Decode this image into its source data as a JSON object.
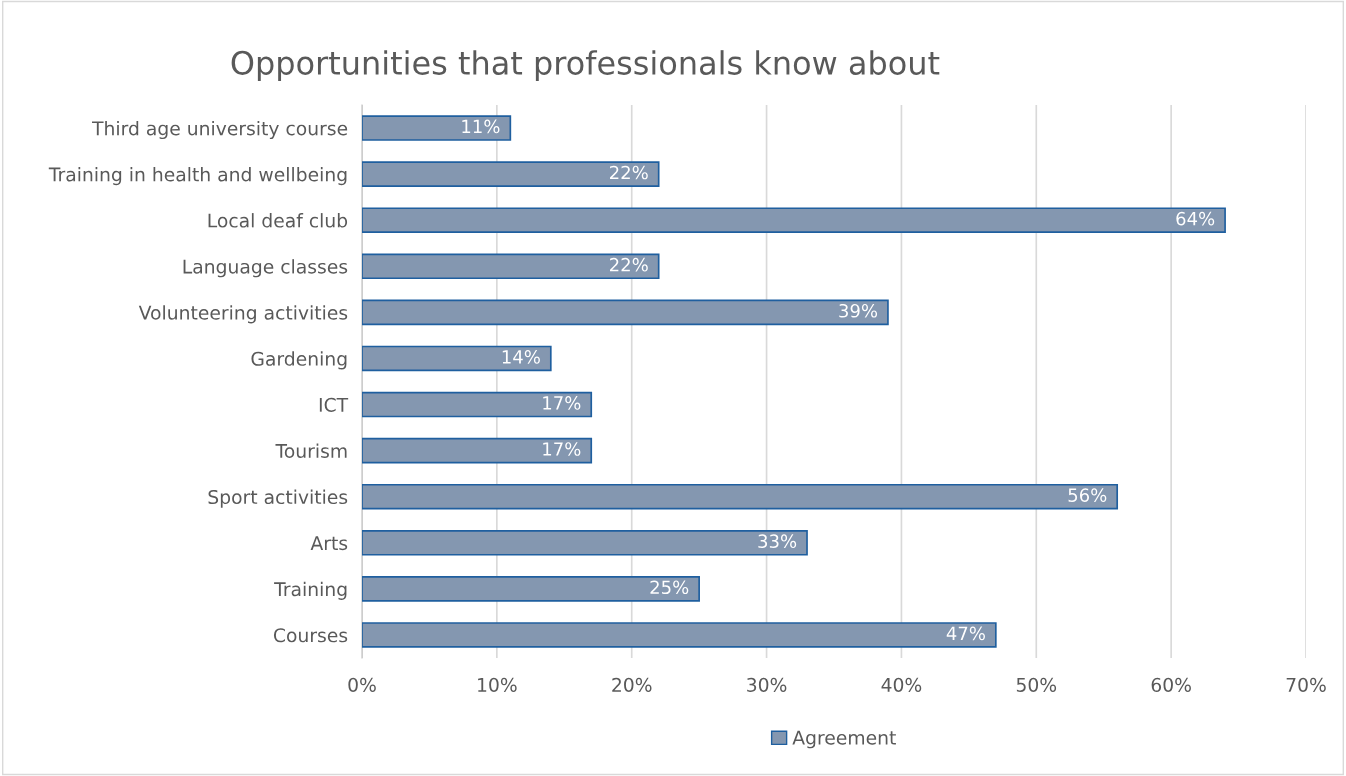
{
  "chart_data": {
    "type": "bar",
    "orientation": "horizontal",
    "title": "Opportunities that professionals know about",
    "categories": [
      "Third age university course",
      "Training in health and wellbeing",
      "Local deaf club",
      "Language classes",
      "Volunteering activities",
      "Gardening",
      "ICT",
      "Tourism",
      "Sport activities",
      "Arts",
      "Training",
      "Courses"
    ],
    "series": [
      {
        "name": "Agreement",
        "color": "#8497b0",
        "values": [
          11,
          22,
          64,
          22,
          39,
          14,
          17,
          17,
          56,
          33,
          25,
          47
        ],
        "value_labels": [
          "11%",
          "22%",
          "64%",
          "22%",
          "39%",
          "14%",
          "17%",
          "17%",
          "56%",
          "33%",
          "25%",
          "47%"
        ]
      }
    ],
    "xlim": [
      0,
      70
    ],
    "xticks": [
      {
        "value": 0,
        "label": "0%"
      },
      {
        "value": 10,
        "label": "10%"
      },
      {
        "value": 20,
        "label": "20%"
      },
      {
        "value": 30,
        "label": "30%"
      },
      {
        "value": 40,
        "label": "40%"
      },
      {
        "value": 50,
        "label": "50%"
      },
      {
        "value": 60,
        "label": "60%"
      },
      {
        "value": 70,
        "label": "70%"
      }
    ],
    "grid": "x",
    "legend": "bottom"
  }
}
